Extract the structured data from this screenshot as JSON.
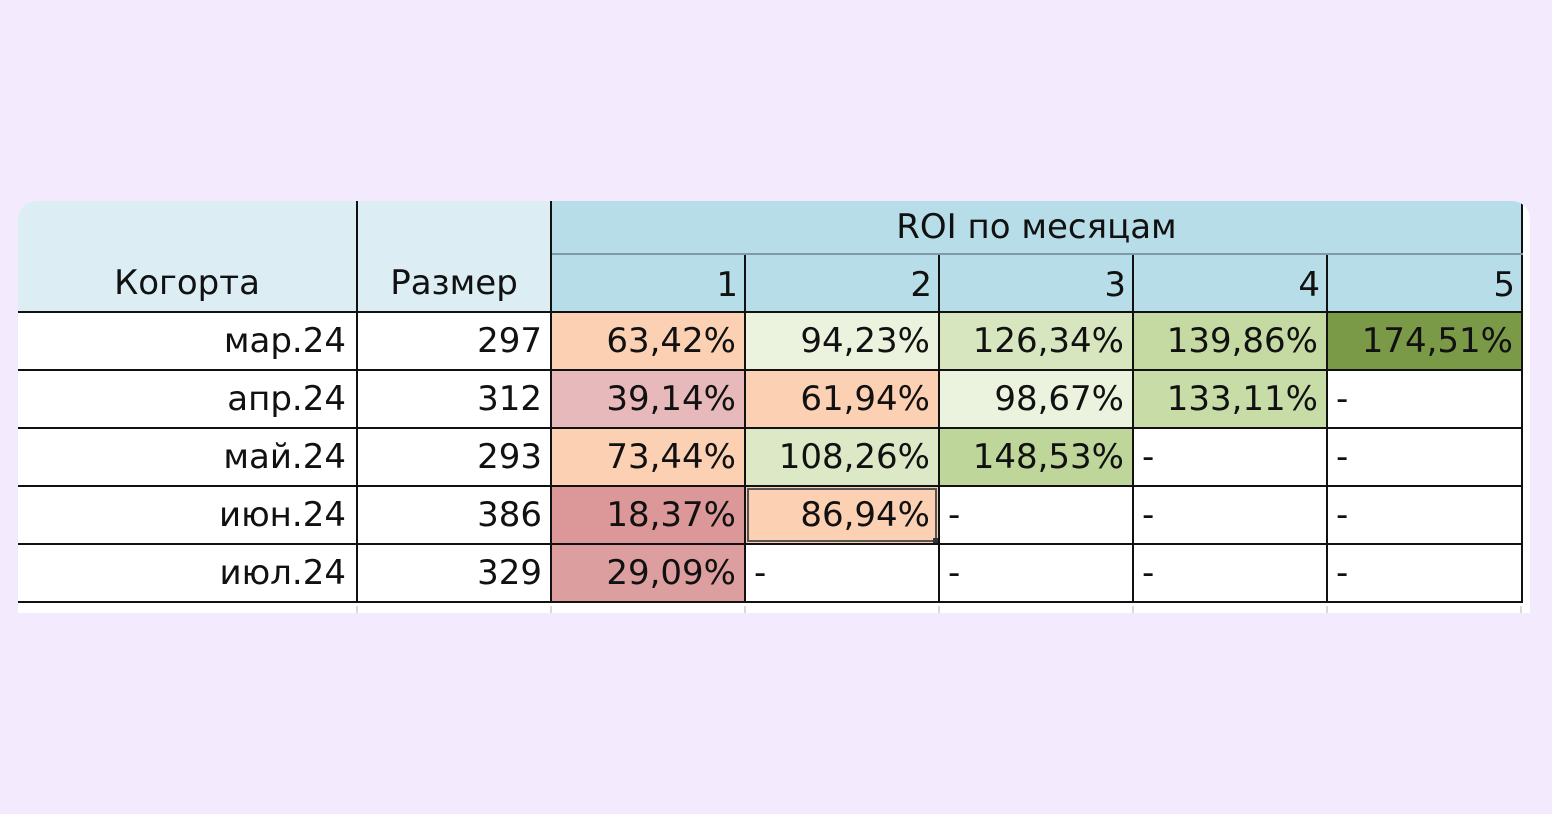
{
  "table": {
    "header": {
      "cohort_label": "Когорта",
      "size_label": "Размер",
      "roi_label": "ROI по месяцам",
      "months": [
        "1",
        "2",
        "3",
        "4",
        "5"
      ]
    },
    "rows": [
      {
        "cohort": "мар.24",
        "size": "297",
        "roi": [
          "63,42%",
          "94,23%",
          "126,34%",
          "139,86%",
          "174,51%"
        ]
      },
      {
        "cohort": "апр.24",
        "size": "312",
        "roi": [
          "39,14%",
          "61,94%",
          "98,67%",
          "133,11%",
          "-"
        ]
      },
      {
        "cohort": "май.24",
        "size": "293",
        "roi": [
          "73,44%",
          "108,26%",
          "148,53%",
          "-",
          "-"
        ]
      },
      {
        "cohort": "июн.24",
        "size": "386",
        "roi": [
          "18,37%",
          "86,94%",
          "-",
          "-",
          "-"
        ]
      },
      {
        "cohort": "июл.24",
        "size": "329",
        "roi": [
          "29,09%",
          "-",
          "-",
          "-",
          "-"
        ]
      }
    ],
    "cell_colors": [
      [
        "#fcd0b3",
        "#ebf2de",
        "#d8e6c0",
        "#c5daa2",
        "#7a9a48"
      ],
      [
        "#e7b9bb",
        "#fcd0b3",
        "#ebf2de",
        "#c8dca8",
        "#ffffff"
      ],
      [
        "#fcd0b3",
        "#dce8c6",
        "#bfd69a",
        "#ffffff",
        "#ffffff"
      ],
      [
        "#dc9899",
        "#fcd0b3",
        "#ffffff",
        "#ffffff",
        "#ffffff"
      ],
      [
        "#dd9e9f",
        "#ffffff",
        "#ffffff",
        "#ffffff",
        "#ffffff"
      ]
    ],
    "selected_cell": {
      "row": 3,
      "col": 1
    }
  }
}
